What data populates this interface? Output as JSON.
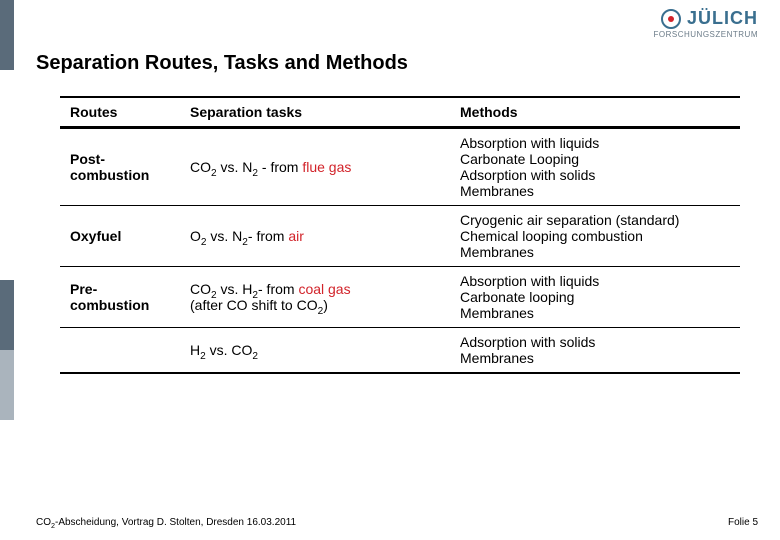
{
  "logo": {
    "text": "JÜLICH",
    "subtitle": "FORSCHUNGSZENTRUM",
    "brand_color": "#3a6f8f"
  },
  "title": {
    "text": "Separation Routes, Tasks and Methods",
    "fontsize": 20
  },
  "table": {
    "fontsize": 14,
    "header_border_color": "#000000",
    "highlight_color": "#d2232a",
    "columns": {
      "routes": "Routes",
      "tasks": "Separation tasks",
      "methods": "Methods"
    },
    "rows": [
      {
        "route": "Post-combustion",
        "task_pre": "CO",
        "task_sub1": "2",
        "task_mid": " vs. N",
        "task_sub2": "2",
        "task_post": " - from ",
        "task_hl": "flue gas",
        "task_after": "",
        "methods": [
          "Absorption with liquids",
          "Carbonate Looping",
          "Adsorption with solids",
          "Membranes"
        ]
      },
      {
        "route": "Oxyfuel",
        "task_pre": "O",
        "task_sub1": "2",
        "task_mid": " vs. N",
        "task_sub2": "2",
        "task_post": "- from ",
        "task_hl": "air",
        "task_after": "",
        "methods": [
          "Cryogenic air separation (standard)",
          "Chemical looping combustion",
          "Membranes"
        ]
      },
      {
        "route": "Pre-combustion",
        "task_pre": "CO",
        "task_sub1": "2",
        "task_mid": " vs. H",
        "task_sub2": "2",
        "task_post": "- from ",
        "task_hl": "coal gas",
        "task_after_line2_pre": "(after CO shift to CO",
        "task_after_line2_sub": "2",
        "task_after_line2_post": ")",
        "methods": [
          "Absorption with liquids",
          "Carbonate looping",
          "Membranes"
        ]
      },
      {
        "route": "",
        "task_pre": "H",
        "task_sub1": "2",
        "task_mid": " vs. CO",
        "task_sub2": "2",
        "task_post": "",
        "task_hl": "",
        "task_after": "",
        "methods": [
          "Adsorption with solids",
          "Membranes"
        ]
      }
    ]
  },
  "footer": {
    "left_pre": "CO",
    "left_sub": "2",
    "left_post": "-Abscheidung, Vortrag D. Stolten, Dresden 16.03.2011",
    "right": "Folie 5",
    "fontsize": 10
  }
}
